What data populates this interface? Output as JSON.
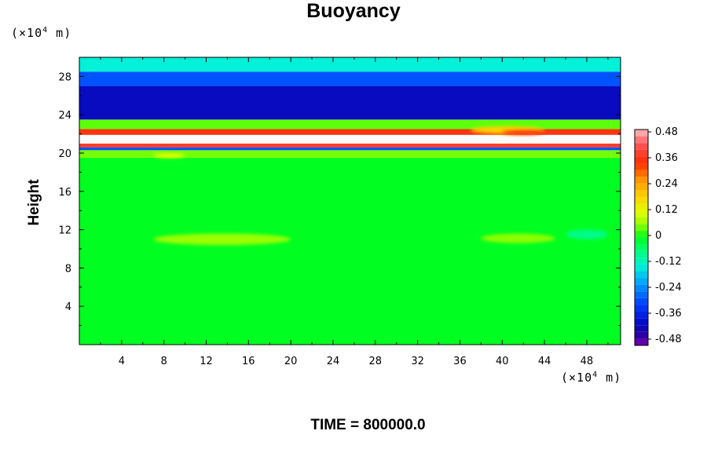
{
  "chart_data": {
    "type": "heatmap",
    "title": "Buoyancy",
    "ylabel": "Height",
    "y_unit": {
      "prefix": "(×10",
      "exp": "4",
      "suffix": " m)"
    },
    "x_unit": {
      "prefix": "(×10",
      "exp": "4",
      "suffix": " m)"
    },
    "xlim": [
      0,
      51.2
    ],
    "ylim": [
      0,
      30
    ],
    "x_ticks": [
      4,
      8,
      12,
      16,
      20,
      24,
      28,
      32,
      36,
      40,
      44,
      48
    ],
    "y_ticks": [
      4,
      8,
      12,
      16,
      20,
      24,
      28
    ],
    "colorbar": {
      "labels": [
        "0.48",
        "0.36",
        "0.24",
        "0.12",
        "0",
        "-0.12",
        "-0.24",
        "-0.36",
        "-0.48"
      ],
      "range": [
        -0.48,
        0.48
      ]
    },
    "bands": [
      {
        "y": [
          0,
          19.5
        ],
        "value": 0.0
      },
      {
        "y": [
          19.5,
          20.3
        ],
        "value": 0.05
      },
      {
        "y": [
          20.3,
          20.6
        ],
        "value": -0.3
      },
      {
        "y": [
          20.6,
          21.0
        ],
        "value": 0.4
      },
      {
        "y": [
          21.0,
          21.9
        ],
        "value": 0.55
      },
      {
        "y": [
          21.9,
          22.5
        ],
        "value": 0.38
      },
      {
        "y": [
          22.5,
          23.5
        ],
        "value": 0.04
      },
      {
        "y": [
          23.5,
          27.0
        ],
        "value": -0.42
      },
      {
        "y": [
          27.0,
          28.5
        ],
        "value": -0.3
      },
      {
        "y": [
          28.5,
          30.0
        ],
        "value": -0.14
      }
    ],
    "features": [
      {
        "x": [
          37,
          44
        ],
        "y": [
          22.0,
          22.8
        ],
        "value": 0.2
      },
      {
        "x": [
          40,
          44
        ],
        "y": [
          21.9,
          22.4
        ],
        "value": 0.38
      },
      {
        "x": [
          7,
          20
        ],
        "y": [
          10.4,
          11.6
        ],
        "value": 0.07
      },
      {
        "x": [
          38,
          45
        ],
        "y": [
          10.6,
          11.6
        ],
        "value": 0.06
      },
      {
        "x": [
          46,
          50
        ],
        "y": [
          11.0,
          12.0
        ],
        "value": -0.08
      },
      {
        "x": [
          7,
          10
        ],
        "y": [
          19.5,
          20.0
        ],
        "value": 0.12
      }
    ]
  },
  "footer": {
    "time_text": "TIME = 800000.0"
  }
}
